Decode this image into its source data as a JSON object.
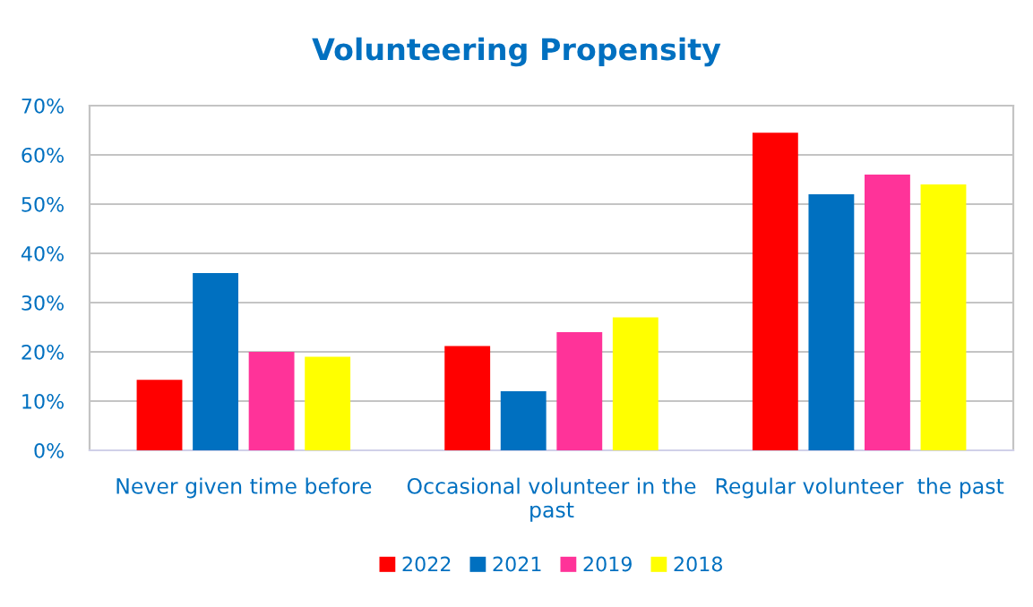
{
  "chart_data": {
    "type": "bar",
    "title": "Volunteering Propensity",
    "categories": [
      "Never given time before",
      "Occasional volunteer in the\npast",
      "Regular volunteer  the past"
    ],
    "series": [
      {
        "name": "2022",
        "color": "#ff0000",
        "values": [
          14.3,
          21.2,
          64.5
        ]
      },
      {
        "name": "2021",
        "color": "#0070c0",
        "values": [
          36,
          12,
          52
        ]
      },
      {
        "name": "2019",
        "color": "#ff3399",
        "values": [
          20,
          24,
          56
        ]
      },
      {
        "name": "2018",
        "color": "#ffff00",
        "values": [
          19,
          27,
          54
        ]
      }
    ],
    "ylim": [
      0,
      70
    ],
    "yticks": [
      {
        "value": 0,
        "label": "0%"
      },
      {
        "value": 10,
        "label": "10%"
      },
      {
        "value": 20,
        "label": "20%"
      },
      {
        "value": 30,
        "label": "30%"
      },
      {
        "value": 40,
        "label": "40%"
      },
      {
        "value": 50,
        "label": "50%"
      },
      {
        "value": 60,
        "label": "60%"
      },
      {
        "value": 70,
        "label": "70%"
      }
    ],
    "grid": "y",
    "legend": "bottom"
  }
}
